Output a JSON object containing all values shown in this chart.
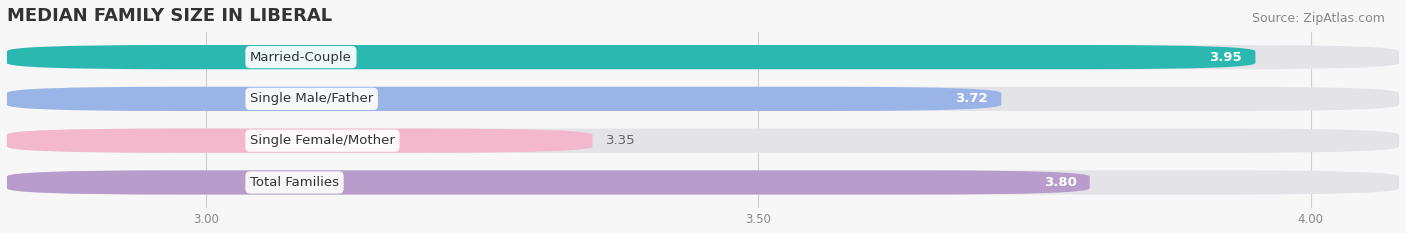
{
  "title": "MEDIAN FAMILY SIZE IN LIBERAL",
  "source": "Source: ZipAtlas.com",
  "categories": [
    "Married-Couple",
    "Single Male/Father",
    "Single Female/Mother",
    "Total Families"
  ],
  "values": [
    3.95,
    3.72,
    3.35,
    3.8
  ],
  "bar_colors": [
    "#2ab8b0",
    "#9ab4e8",
    "#f4b8cc",
    "#b89ccc"
  ],
  "label_bg": "white",
  "value_colors": [
    "white",
    "white",
    "#666666",
    "white"
  ],
  "xlim_left": 2.82,
  "xlim_right": 4.08,
  "xticks": [
    3.0,
    3.5,
    4.0
  ],
  "xtick_labels": [
    "3.00",
    "3.50",
    "4.00"
  ],
  "background_color": "#f7f7f7",
  "bar_bg_color": "#e4e4e8",
  "title_fontsize": 13,
  "source_fontsize": 9,
  "label_fontsize": 9.5,
  "value_fontsize": 9.5,
  "bar_height": 0.58
}
